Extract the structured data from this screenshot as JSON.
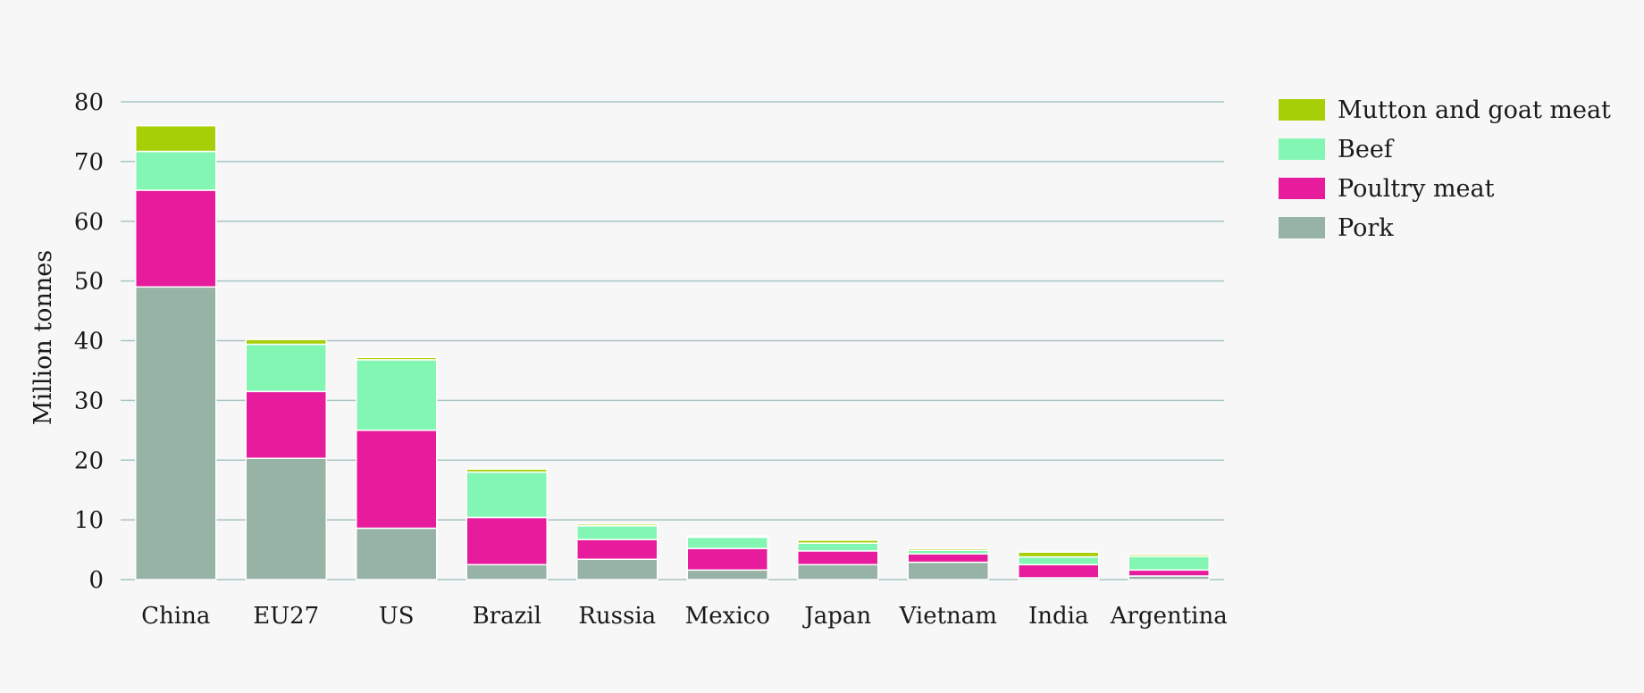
{
  "chart_data": {
    "type": "bar",
    "stacked": true,
    "title": "",
    "xlabel": "",
    "ylabel": "Million tonnes",
    "ylim": [
      0,
      80
    ],
    "yticks": [
      0,
      10,
      20,
      30,
      40,
      50,
      60,
      70,
      80
    ],
    "grid": true,
    "legend_position": "top-right",
    "categories": [
      "China",
      "EU27",
      "US",
      "Brazil",
      "Russia",
      "Mexico",
      "Japan",
      "Vietnam",
      "India",
      "Argentina"
    ],
    "series": [
      {
        "name": "Pork",
        "color": "#97b3a6",
        "values": [
          49,
          20.3,
          8.6,
          2.5,
          3.4,
          1.6,
          2.5,
          2.9,
          0.3,
          0.6
        ]
      },
      {
        "name": "Poultry meat",
        "color": "#e61c9c",
        "values": [
          16.2,
          11.2,
          16.4,
          7.9,
          3.3,
          3.6,
          2.3,
          1.4,
          2.2,
          1.0
        ]
      },
      {
        "name": "Beef",
        "color": "#84f6b4",
        "values": [
          6.5,
          7.9,
          11.8,
          7.6,
          2.3,
          1.9,
          1.3,
          0.6,
          1.3,
          2.3
        ]
      },
      {
        "name": "Mutton and goat meat",
        "color": "#a7cf07",
        "values": [
          4.3,
          0.8,
          0.4,
          0.5,
          0.3,
          0.2,
          0.5,
          0.3,
          0.8,
          0.3
        ]
      }
    ]
  }
}
